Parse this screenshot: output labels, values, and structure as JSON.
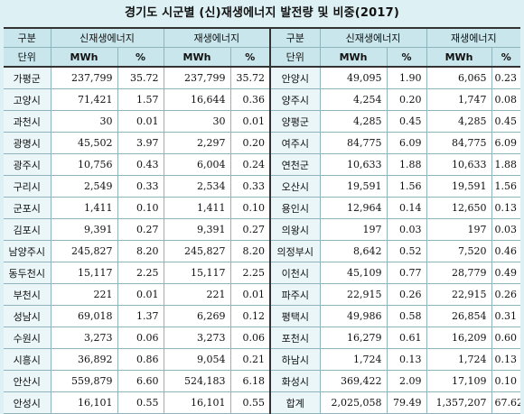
{
  "title": "경기도 시군별 (신)재생에너지 발전량 및 비중(2017)",
  "header": {
    "col_region": "구분",
    "col_new_renewable": "신재생에너지",
    "col_renewable": "재생에너지",
    "unit_label": "단위",
    "unit_mwh": "MWh",
    "unit_pct": "%"
  },
  "left_rows": [
    {
      "region": "가평군",
      "new_mwh": "237,799",
      "new_pct": "35.72",
      "ren_mwh": "237,799",
      "ren_pct": "35.72"
    },
    {
      "region": "고양시",
      "new_mwh": "71,421",
      "new_pct": "1.57",
      "ren_mwh": "16,644",
      "ren_pct": "0.36"
    },
    {
      "region": "과천시",
      "new_mwh": "30",
      "new_pct": "0.01",
      "ren_mwh": "30",
      "ren_pct": "0.01"
    },
    {
      "region": "광명시",
      "new_mwh": "45,502",
      "new_pct": "3.97",
      "ren_mwh": "2,297",
      "ren_pct": "0.20"
    },
    {
      "region": "광주시",
      "new_mwh": "10,756",
      "new_pct": "0.43",
      "ren_mwh": "6,004",
      "ren_pct": "0.24"
    },
    {
      "region": "구리시",
      "new_mwh": "2,549",
      "new_pct": "0.33",
      "ren_mwh": "2,534",
      "ren_pct": "0.33"
    },
    {
      "region": "군포시",
      "new_mwh": "1,411",
      "new_pct": "0.10",
      "ren_mwh": "1,411",
      "ren_pct": "0.10"
    },
    {
      "region": "김포시",
      "new_mwh": "9,391",
      "new_pct": "0.27",
      "ren_mwh": "9,391",
      "ren_pct": "0.27"
    },
    {
      "region": "남양주시",
      "new_mwh": "245,827",
      "new_pct": "8.20",
      "ren_mwh": "245,827",
      "ren_pct": "8.20"
    },
    {
      "region": "동두천시",
      "new_mwh": "15,117",
      "new_pct": "2.25",
      "ren_mwh": "15,117",
      "ren_pct": "2.25"
    },
    {
      "region": "부천시",
      "new_mwh": "221",
      "new_pct": "0.01",
      "ren_mwh": "221",
      "ren_pct": "0.01"
    },
    {
      "region": "성남시",
      "new_mwh": "69,018",
      "new_pct": "1.37",
      "ren_mwh": "6,269",
      "ren_pct": "0.12"
    },
    {
      "region": "수원시",
      "new_mwh": "3,273",
      "new_pct": "0.06",
      "ren_mwh": "3,273",
      "ren_pct": "0.06"
    },
    {
      "region": "시흥시",
      "new_mwh": "36,892",
      "new_pct": "0.86",
      "ren_mwh": "9,054",
      "ren_pct": "0.21"
    },
    {
      "region": "안산시",
      "new_mwh": "559,879",
      "new_pct": "6.60",
      "ren_mwh": "524,183",
      "ren_pct": "6.18"
    },
    {
      "region": "안성시",
      "new_mwh": "16,101",
      "new_pct": "0.55",
      "ren_mwh": "16,101",
      "ren_pct": "0.55"
    }
  ],
  "right_rows": [
    {
      "region": "안양시",
      "new_mwh": "49,095",
      "new_pct": "1.90",
      "ren_mwh": "6,065",
      "ren_pct": "0.23"
    },
    {
      "region": "양주시",
      "new_mwh": "4,254",
      "new_pct": "0.20",
      "ren_mwh": "1,747",
      "ren_pct": "0.08"
    },
    {
      "region": "양평군",
      "new_mwh": "4,285",
      "new_pct": "0.45",
      "ren_mwh": "4,285",
      "ren_pct": "0.45"
    },
    {
      "region": "여주시",
      "new_mwh": "84,775",
      "new_pct": "6.09",
      "ren_mwh": "84,775",
      "ren_pct": "6.09"
    },
    {
      "region": "연천군",
      "new_mwh": "10,633",
      "new_pct": "1.88",
      "ren_mwh": "10,633",
      "ren_pct": "1.88"
    },
    {
      "region": "오산시",
      "new_mwh": "19,591",
      "new_pct": "1.56",
      "ren_mwh": "19,591",
      "ren_pct": "1.56"
    },
    {
      "region": "용인시",
      "new_mwh": "12,964",
      "new_pct": "0.14",
      "ren_mwh": "12,650",
      "ren_pct": "0.13"
    },
    {
      "region": "의왕시",
      "new_mwh": "197",
      "new_pct": "0.03",
      "ren_mwh": "197",
      "ren_pct": "0.03"
    },
    {
      "region": "의정부시",
      "new_mwh": "8,642",
      "new_pct": "0.52",
      "ren_mwh": "7,520",
      "ren_pct": "0.46"
    },
    {
      "region": "이천시",
      "new_mwh": "45,109",
      "new_pct": "0.77",
      "ren_mwh": "28,779",
      "ren_pct": "0.49"
    },
    {
      "region": "파주시",
      "new_mwh": "22,915",
      "new_pct": "0.26",
      "ren_mwh": "22,915",
      "ren_pct": "0.26"
    },
    {
      "region": "평택시",
      "new_mwh": "49,986",
      "new_pct": "0.58",
      "ren_mwh": "26,854",
      "ren_pct": "0.31"
    },
    {
      "region": "포천시",
      "new_mwh": "16,279",
      "new_pct": "0.61",
      "ren_mwh": "16,209",
      "ren_pct": "0.60"
    },
    {
      "region": "하남시",
      "new_mwh": "1,724",
      "new_pct": "0.13",
      "ren_mwh": "1,724",
      "ren_pct": "0.13"
    },
    {
      "region": "화성시",
      "new_mwh": "369,422",
      "new_pct": "2.09",
      "ren_mwh": "17,109",
      "ren_pct": "0.10"
    },
    {
      "region": "합계",
      "new_mwh": "2,025,058",
      "new_pct": "79.49",
      "ren_mwh": "1,357,207",
      "ren_pct": "67.62"
    }
  ]
}
